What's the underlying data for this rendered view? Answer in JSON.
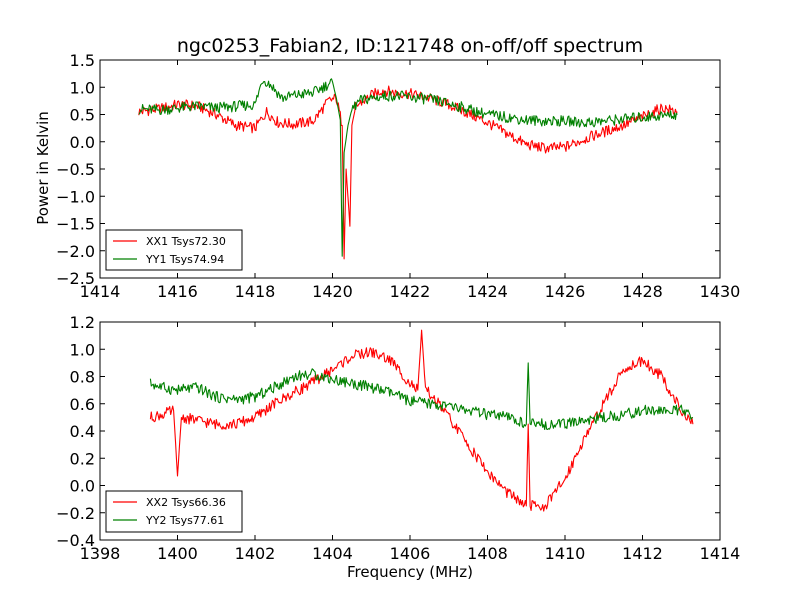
{
  "chart_data": [
    {
      "type": "line",
      "title": "ngc0253_Fabian2, ID:121748 on-off/off spectrum",
      "xlabel": "",
      "ylabel": "Power in Kelvin",
      "xlim": [
        1414,
        1430
      ],
      "ylim": [
        -2.5,
        1.5
      ],
      "xticks": [
        1414,
        1416,
        1418,
        1420,
        1422,
        1424,
        1426,
        1428,
        1430
      ],
      "yticks": [
        -2.5,
        -2.0,
        -1.5,
        -1.0,
        -0.5,
        0.0,
        0.5,
        1.0,
        1.5
      ],
      "legend_position": "lower-left",
      "grid": false,
      "series": [
        {
          "name": "XX1 Tsys72.30",
          "color": "#ff0000",
          "x": [
            1415.0,
            1415.5,
            1416.0,
            1416.5,
            1417.0,
            1417.5,
            1418.0,
            1418.3,
            1418.6,
            1419.0,
            1419.5,
            1419.9,
            1420.1,
            1420.25,
            1420.3,
            1420.35,
            1420.45,
            1420.5,
            1420.6,
            1420.8,
            1421.0,
            1421.3,
            1421.6,
            1422.0,
            1422.5,
            1423.0,
            1423.5,
            1424.0,
            1424.5,
            1425.0,
            1425.5,
            1426.0,
            1426.5,
            1427.0,
            1427.5,
            1428.0,
            1428.5,
            1428.9
          ],
          "y": [
            0.55,
            0.6,
            0.68,
            0.66,
            0.5,
            0.3,
            0.25,
            0.55,
            0.35,
            0.32,
            0.38,
            0.75,
            0.8,
            0.3,
            -2.15,
            -0.5,
            -1.55,
            0.3,
            0.65,
            0.75,
            0.85,
            0.95,
            0.9,
            0.88,
            0.8,
            0.68,
            0.52,
            0.35,
            0.15,
            -0.05,
            -0.12,
            -0.1,
            0.05,
            0.18,
            0.3,
            0.45,
            0.62,
            0.55
          ]
        },
        {
          "name": "YY1 Tsys74.94",
          "color": "#008000",
          "x": [
            1415.0,
            1415.5,
            1416.0,
            1416.5,
            1417.0,
            1417.5,
            1418.0,
            1418.2,
            1418.4,
            1418.7,
            1419.0,
            1419.5,
            1420.0,
            1420.1,
            1420.2,
            1420.25,
            1420.3,
            1420.4,
            1420.5,
            1420.7,
            1421.0,
            1421.5,
            1422.0,
            1422.5,
            1423.0,
            1423.5,
            1424.0,
            1424.5,
            1425.0,
            1425.5,
            1426.0,
            1426.5,
            1427.0,
            1427.5,
            1428.0,
            1428.5,
            1428.9
          ],
          "y": [
            0.6,
            0.58,
            0.62,
            0.65,
            0.62,
            0.65,
            0.68,
            1.15,
            1.05,
            0.8,
            0.85,
            0.9,
            1.1,
            0.8,
            0.4,
            -2.1,
            -0.2,
            0.3,
            0.6,
            0.75,
            0.8,
            0.85,
            0.82,
            0.78,
            0.7,
            0.6,
            0.5,
            0.45,
            0.4,
            0.38,
            0.38,
            0.35,
            0.38,
            0.42,
            0.45,
            0.48,
            0.5
          ]
        }
      ]
    },
    {
      "type": "line",
      "title": "",
      "xlabel": "Frequency (MHz)",
      "ylabel": "",
      "xlim": [
        1398,
        1414
      ],
      "ylim": [
        -0.4,
        1.2
      ],
      "xticks": [
        1398,
        1400,
        1402,
        1404,
        1406,
        1408,
        1410,
        1412,
        1414
      ],
      "yticks": [
        -0.4,
        -0.2,
        0.0,
        0.2,
        0.4,
        0.6,
        0.8,
        1.0,
        1.2
      ],
      "legend_position": "lower-left",
      "grid": false,
      "series": [
        {
          "name": "XX2 Tsys66.36",
          "color": "#ff0000",
          "x": [
            1399.3,
            1399.6,
            1399.9,
            1400.0,
            1400.1,
            1400.5,
            1401.0,
            1401.5,
            1402.0,
            1402.5,
            1403.0,
            1403.5,
            1404.0,
            1404.5,
            1405.0,
            1405.5,
            1406.0,
            1406.2,
            1406.3,
            1406.4,
            1406.6,
            1407.0,
            1407.5,
            1408.0,
            1408.5,
            1409.0,
            1409.05,
            1409.1,
            1409.5,
            1410.0,
            1410.5,
            1411.0,
            1411.5,
            1412.0,
            1412.5,
            1413.0,
            1413.3
          ],
          "y": [
            0.5,
            0.52,
            0.55,
            0.07,
            0.5,
            0.48,
            0.45,
            0.45,
            0.5,
            0.6,
            0.68,
            0.76,
            0.85,
            0.95,
            0.98,
            0.92,
            0.75,
            0.7,
            1.14,
            0.7,
            0.65,
            0.5,
            0.3,
            0.1,
            -0.05,
            -0.15,
            0.45,
            -0.15,
            -0.15,
            0.05,
            0.35,
            0.6,
            0.85,
            0.92,
            0.8,
            0.55,
            0.45
          ]
        },
        {
          "name": "YY2 Tsys77.61",
          "color": "#008000",
          "x": [
            1399.3,
            1399.6,
            1400.0,
            1400.5,
            1401.0,
            1401.5,
            1402.0,
            1402.5,
            1403.0,
            1403.5,
            1404.0,
            1404.5,
            1405.0,
            1405.5,
            1406.0,
            1406.5,
            1407.0,
            1407.5,
            1408.0,
            1408.5,
            1409.0,
            1409.05,
            1409.1,
            1409.5,
            1410.0,
            1410.5,
            1411.0,
            1411.5,
            1412.0,
            1412.5,
            1413.0,
            1413.3
          ],
          "y": [
            0.75,
            0.72,
            0.7,
            0.72,
            0.65,
            0.63,
            0.65,
            0.72,
            0.8,
            0.82,
            0.78,
            0.75,
            0.72,
            0.68,
            0.62,
            0.6,
            0.58,
            0.55,
            0.52,
            0.5,
            0.45,
            0.9,
            0.45,
            0.45,
            0.45,
            0.48,
            0.5,
            0.52,
            0.55,
            0.55,
            0.55,
            0.5
          ]
        }
      ]
    }
  ]
}
